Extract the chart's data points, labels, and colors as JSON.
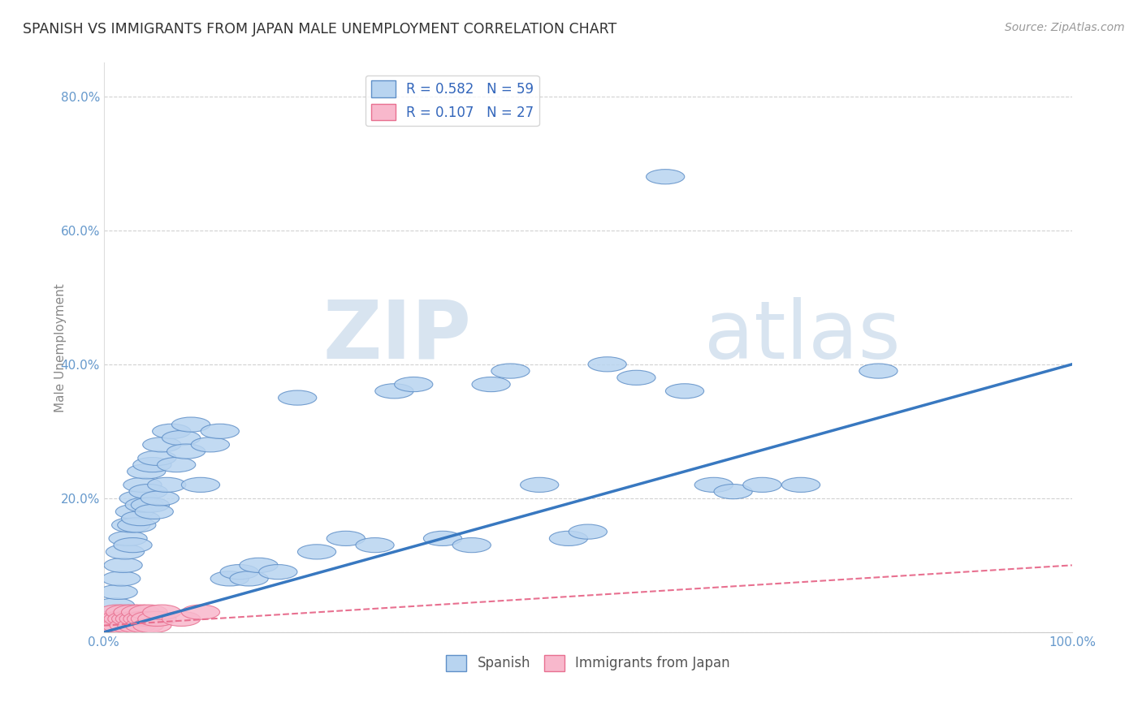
{
  "title": "SPANISH VS IMMIGRANTS FROM JAPAN MALE UNEMPLOYMENT CORRELATION CHART",
  "source": "Source: ZipAtlas.com",
  "ylabel": "Male Unemployment",
  "watermark_zip": "ZIP",
  "watermark_atlas": "atlas",
  "legend_labels": [
    "Spanish",
    "Immigrants from Japan"
  ],
  "r_spanish": 0.582,
  "n_spanish": 59,
  "r_japan": 0.107,
  "n_japan": 27,
  "spanish_fill": "#b8d4f0",
  "japan_fill": "#f8b8cc",
  "spanish_edge": "#6090c8",
  "japan_edge": "#e87090",
  "spanish_line_color": "#3878c0",
  "japan_line_color": "#e87090",
  "spanish_x": [
    0.01,
    0.012,
    0.015,
    0.018,
    0.02,
    0.022,
    0.025,
    0.028,
    0.03,
    0.032,
    0.034,
    0.036,
    0.038,
    0.04,
    0.042,
    0.044,
    0.046,
    0.048,
    0.05,
    0.052,
    0.055,
    0.058,
    0.06,
    0.065,
    0.07,
    0.075,
    0.08,
    0.085,
    0.09,
    0.1,
    0.11,
    0.12,
    0.13,
    0.14,
    0.15,
    0.16,
    0.18,
    0.2,
    0.22,
    0.25,
    0.28,
    0.3,
    0.32,
    0.35,
    0.38,
    0.4,
    0.42,
    0.45,
    0.48,
    0.5,
    0.52,
    0.55,
    0.58,
    0.6,
    0.63,
    0.65,
    0.68,
    0.72,
    0.8
  ],
  "spanish_y": [
    0.02,
    0.04,
    0.06,
    0.08,
    0.1,
    0.12,
    0.14,
    0.16,
    0.13,
    0.18,
    0.16,
    0.2,
    0.17,
    0.22,
    0.19,
    0.24,
    0.21,
    0.19,
    0.25,
    0.18,
    0.26,
    0.2,
    0.28,
    0.22,
    0.3,
    0.25,
    0.29,
    0.27,
    0.31,
    0.22,
    0.28,
    0.3,
    0.08,
    0.09,
    0.08,
    0.1,
    0.09,
    0.35,
    0.12,
    0.14,
    0.13,
    0.36,
    0.37,
    0.14,
    0.13,
    0.37,
    0.39,
    0.22,
    0.14,
    0.15,
    0.4,
    0.38,
    0.68,
    0.36,
    0.22,
    0.21,
    0.22,
    0.22,
    0.39
  ],
  "japan_x": [
    0.005,
    0.008,
    0.01,
    0.012,
    0.014,
    0.016,
    0.018,
    0.02,
    0.022,
    0.024,
    0.026,
    0.028,
    0.03,
    0.032,
    0.034,
    0.036,
    0.038,
    0.04,
    0.042,
    0.044,
    0.046,
    0.048,
    0.05,
    0.055,
    0.06,
    0.08,
    0.1
  ],
  "japan_y": [
    0.01,
    0.02,
    0.01,
    0.02,
    0.03,
    0.02,
    0.01,
    0.02,
    0.03,
    0.02,
    0.01,
    0.02,
    0.03,
    0.02,
    0.01,
    0.02,
    0.03,
    0.02,
    0.01,
    0.02,
    0.03,
    0.02,
    0.01,
    0.02,
    0.03,
    0.02,
    0.03
  ],
  "spanish_line_x": [
    0.0,
    1.0
  ],
  "spanish_line_y": [
    0.0,
    0.4
  ],
  "japan_line_x": [
    0.0,
    1.0
  ],
  "japan_line_y": [
    0.01,
    0.1
  ],
  "ylim": [
    0.0,
    0.85
  ],
  "xlim": [
    0.0,
    1.0
  ],
  "yticks": [
    0.0,
    0.2,
    0.4,
    0.6,
    0.8
  ],
  "ytick_labels": [
    "",
    "20.0%",
    "40.0%",
    "60.0%",
    "80.0%"
  ],
  "xtick_labels": [
    "0.0%",
    "100.0%"
  ],
  "grid_color": "#cccccc",
  "background_color": "#ffffff",
  "tick_color": "#6699cc",
  "ylabel_color": "#888888",
  "title_color": "#333333"
}
